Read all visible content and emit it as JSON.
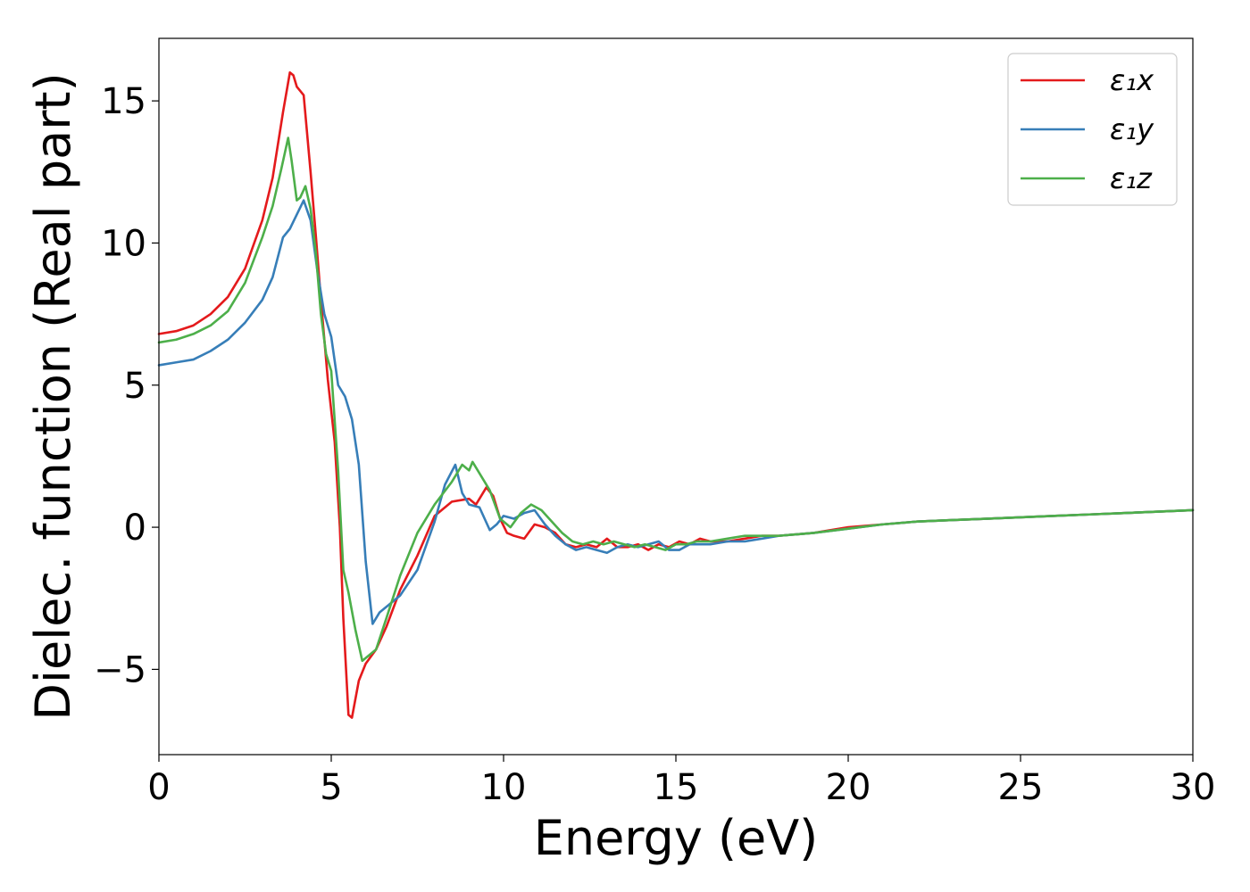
{
  "chart_data": {
    "type": "line",
    "title": "",
    "xlabel": "Energy (eV)",
    "ylabel": "Dielec. function (Real part)",
    "xlim": [
      0,
      30
    ],
    "ylim": [
      -8,
      17.2
    ],
    "xticks": [
      0,
      5,
      10,
      15,
      20,
      25,
      30
    ],
    "xtick_labels": [
      "0",
      "5",
      "10",
      "15",
      "20",
      "25",
      "30"
    ],
    "yticks": [
      -5,
      0,
      5,
      10,
      15
    ],
    "ytick_labels": [
      "−5",
      "0",
      "5",
      "10",
      "15"
    ],
    "grid": false,
    "legend_position": "top-right",
    "series": [
      {
        "name": "ε₁x",
        "color": "#e41a1c",
        "x": [
          0,
          0.5,
          1,
          1.5,
          2,
          2.5,
          3,
          3.3,
          3.6,
          3.8,
          3.9,
          4.0,
          4.2,
          4.4,
          4.55,
          4.7,
          4.9,
          5.1,
          5.25,
          5.35,
          5.5,
          5.6,
          5.8,
          6.0,
          6.3,
          6.6,
          7.0,
          7.5,
          8.0,
          8.5,
          9.0,
          9.2,
          9.5,
          9.7,
          9.9,
          10.1,
          10.3,
          10.6,
          10.9,
          11.2,
          11.5,
          11.8,
          12.1,
          12.4,
          12.7,
          13.0,
          13.3,
          13.6,
          13.9,
          14.2,
          14.5,
          14.8,
          15.1,
          15.4,
          15.7,
          16.0,
          16.5,
          17.0,
          17.5,
          18.0,
          19.0,
          20.0,
          21.0,
          22.0,
          23.0,
          24.0,
          25.0,
          26.0,
          27.0,
          28.0,
          29.0,
          30.0
        ],
        "y": [
          6.8,
          6.9,
          7.1,
          7.5,
          8.1,
          9.1,
          10.8,
          12.3,
          14.6,
          16.0,
          15.9,
          15.5,
          15.2,
          12.5,
          10.3,
          8.0,
          5.2,
          3.0,
          0.0,
          -3.2,
          -6.6,
          -6.7,
          -5.4,
          -4.8,
          -4.3,
          -3.5,
          -2.2,
          -1.0,
          0.4,
          0.9,
          1.0,
          0.8,
          1.4,
          1.1,
          0.3,
          -0.2,
          -0.3,
          -0.4,
          0.1,
          0.0,
          -0.2,
          -0.6,
          -0.7,
          -0.6,
          -0.7,
          -0.4,
          -0.7,
          -0.7,
          -0.6,
          -0.8,
          -0.6,
          -0.7,
          -0.5,
          -0.6,
          -0.4,
          -0.5,
          -0.5,
          -0.4,
          -0.3,
          -0.3,
          -0.2,
          0.0,
          0.1,
          0.2,
          0.25,
          0.3,
          0.35,
          0.4,
          0.45,
          0.5,
          0.55,
          0.6
        ]
      },
      {
        "name": "ε₁y",
        "color": "#377eb8",
        "x": [
          0,
          0.5,
          1,
          1.5,
          2,
          2.5,
          3,
          3.3,
          3.6,
          3.8,
          4.0,
          4.2,
          4.4,
          4.6,
          4.8,
          5.0,
          5.2,
          5.4,
          5.6,
          5.8,
          6.0,
          6.2,
          6.4,
          6.7,
          7.0,
          7.5,
          8.0,
          8.3,
          8.6,
          8.8,
          9.0,
          9.3,
          9.6,
          9.8,
          10.0,
          10.3,
          10.6,
          10.9,
          11.2,
          11.5,
          11.8,
          12.1,
          12.4,
          12.7,
          13.0,
          13.3,
          13.6,
          13.9,
          14.2,
          14.5,
          14.8,
          15.1,
          15.4,
          15.7,
          16.0,
          16.5,
          17.0,
          17.5,
          18.0,
          19.0,
          20.0,
          21.0,
          22.0,
          23.0,
          24.0,
          25.0,
          26.0,
          27.0,
          28.0,
          29.0,
          30.0
        ],
        "y": [
          5.7,
          5.8,
          5.9,
          6.2,
          6.6,
          7.2,
          8.0,
          8.8,
          10.2,
          10.5,
          11.0,
          11.5,
          10.8,
          9.0,
          7.5,
          6.7,
          5.0,
          4.6,
          3.8,
          2.2,
          -1.2,
          -3.4,
          -3.0,
          -2.7,
          -2.4,
          -1.5,
          0.2,
          1.5,
          2.2,
          1.2,
          0.8,
          0.7,
          -0.1,
          0.1,
          0.4,
          0.3,
          0.5,
          0.6,
          0.1,
          -0.3,
          -0.6,
          -0.8,
          -0.7,
          -0.8,
          -0.9,
          -0.7,
          -0.6,
          -0.7,
          -0.6,
          -0.5,
          -0.8,
          -0.8,
          -0.6,
          -0.6,
          -0.6,
          -0.5,
          -0.5,
          -0.4,
          -0.3,
          -0.2,
          -0.05,
          0.1,
          0.2,
          0.25,
          0.3,
          0.35,
          0.4,
          0.45,
          0.5,
          0.55,
          0.6
        ]
      },
      {
        "name": "ε₁z",
        "color": "#4daf4a",
        "x": [
          0,
          0.5,
          1,
          1.5,
          2,
          2.5,
          3,
          3.3,
          3.55,
          3.75,
          3.85,
          4.0,
          4.1,
          4.25,
          4.4,
          4.55,
          4.7,
          4.85,
          5.0,
          5.2,
          5.35,
          5.5,
          5.7,
          5.9,
          6.1,
          6.3,
          6.6,
          7.0,
          7.5,
          8.0,
          8.5,
          8.8,
          9.0,
          9.1,
          9.3,
          9.6,
          9.9,
          10.2,
          10.5,
          10.8,
          11.1,
          11.4,
          11.7,
          12.0,
          12.3,
          12.6,
          12.9,
          13.2,
          13.5,
          13.8,
          14.1,
          14.4,
          14.7,
          15.0,
          15.3,
          15.6,
          16.0,
          16.5,
          17.0,
          17.5,
          18.0,
          19.0,
          20.0,
          21.0,
          22.0,
          23.0,
          24.0,
          25.0,
          26.0,
          27.0,
          28.0,
          29.0,
          30.0
        ],
        "y": [
          6.5,
          6.6,
          6.8,
          7.1,
          7.6,
          8.6,
          10.2,
          11.3,
          12.6,
          13.7,
          12.9,
          11.5,
          11.6,
          12.0,
          11.2,
          9.7,
          7.5,
          6.1,
          5.5,
          2.0,
          -1.5,
          -2.3,
          -3.6,
          -4.7,
          -4.5,
          -4.3,
          -3.2,
          -1.7,
          -0.2,
          0.8,
          1.6,
          2.2,
          2.0,
          2.3,
          1.9,
          1.3,
          0.3,
          0.0,
          0.5,
          0.8,
          0.6,
          0.2,
          -0.2,
          -0.5,
          -0.6,
          -0.5,
          -0.6,
          -0.5,
          -0.6,
          -0.7,
          -0.6,
          -0.7,
          -0.8,
          -0.6,
          -0.6,
          -0.5,
          -0.5,
          -0.4,
          -0.3,
          -0.3,
          -0.3,
          -0.2,
          -0.05,
          0.1,
          0.2,
          0.25,
          0.3,
          0.35,
          0.4,
          0.45,
          0.5,
          0.55,
          0.6
        ]
      }
    ]
  }
}
